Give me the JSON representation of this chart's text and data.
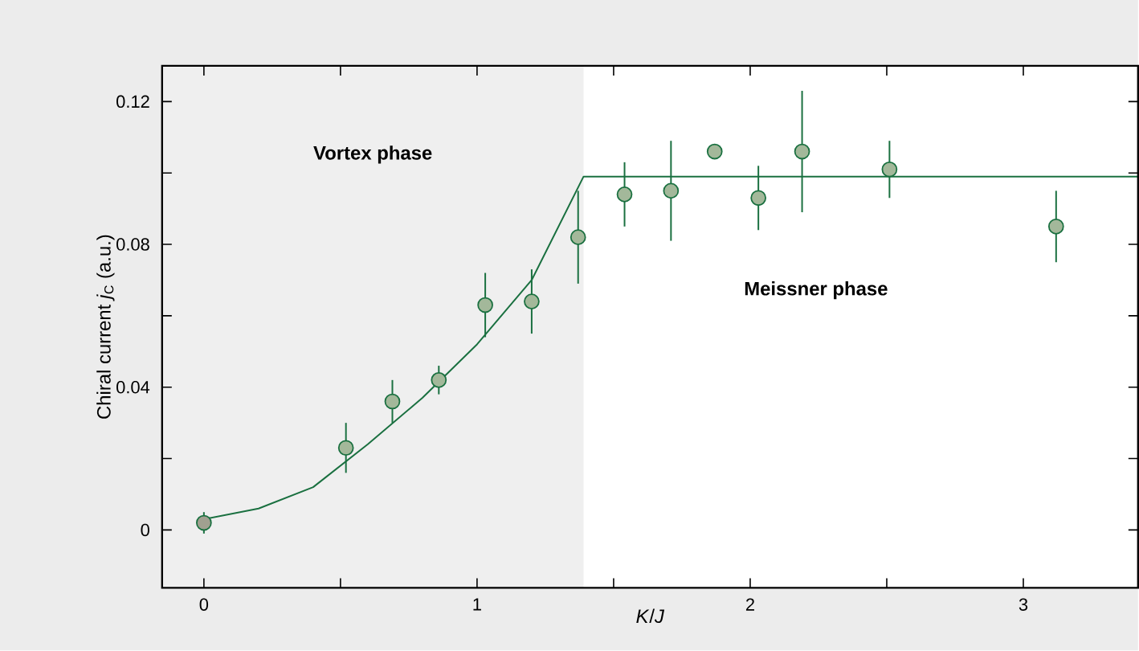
{
  "chart_data": {
    "type": "scatter",
    "xlabel": "*K*/*J*",
    "ylabel": "Chiral current *j*$_{C}$ (a.u.)",
    "xlim": [
      -0.153,
      3.42
    ],
    "ylim": [
      -0.0162,
      0.13
    ],
    "xticks": [
      0,
      {
        "value": 0.5,
        "label": null
      },
      1,
      {
        "value": 1.5,
        "label": null
      },
      2,
      {
        "value": 2.5,
        "label": null
      },
      3
    ],
    "yticks": [
      0,
      {
        "value": 0.02,
        "label": null
      },
      0.04,
      {
        "value": 0.06,
        "label": null
      },
      0.08,
      {
        "value": 0.1,
        "label": null
      },
      0.12
    ],
    "grid": false,
    "bands": [
      {
        "axis": "x",
        "from": -0.153,
        "to": 1.39,
        "label": "Vortex phase",
        "color": "#efefef"
      }
    ],
    "annotations": [
      "Meissner phase"
    ],
    "series": [
      {
        "color": "#1a7040",
        "marker": "circle",
        "x": [
          0,
          0.52,
          0.69,
          0.86,
          1.03,
          1.2,
          1.37,
          1.54,
          1.71,
          1.87,
          2.03,
          2.19,
          2.51,
          3.12
        ],
        "values": [
          0.002,
          0.023,
          0.036,
          0.042,
          0.063,
          0.064,
          0.082,
          0.094,
          0.095,
          0.106,
          0.093,
          0.106,
          0.101,
          0.085
        ],
        "errors": [
          0.003,
          0.007,
          0.006,
          0.004,
          0.009,
          0.009,
          0.013,
          0.009,
          0.014,
          0.001,
          0.009,
          0.017,
          0.008,
          0.01
        ],
        "colors": [
          "#a0a090",
          "#a3b89a",
          "#a3b89a",
          "#a3b89a",
          "#a3b89a",
          "#a3b89a",
          "#a3b89a",
          "#a3b89a",
          "#a3b89a",
          "#a3b89a",
          "#a3b89a",
          "#a3b89a",
          "#a3b89a",
          "#a3b89a"
        ]
      },
      {
        "type": "line",
        "color": "#1a7040",
        "marker": "none",
        "x": [
          0,
          0.2,
          0.4,
          0.6,
          0.8,
          1.0,
          1.2,
          1.39,
          3.42
        ],
        "values": [
          0.003,
          0.006,
          0.012,
          0.024,
          0.037,
          0.052,
          0.07,
          0.099,
          0.099
        ]
      }
    ]
  }
}
